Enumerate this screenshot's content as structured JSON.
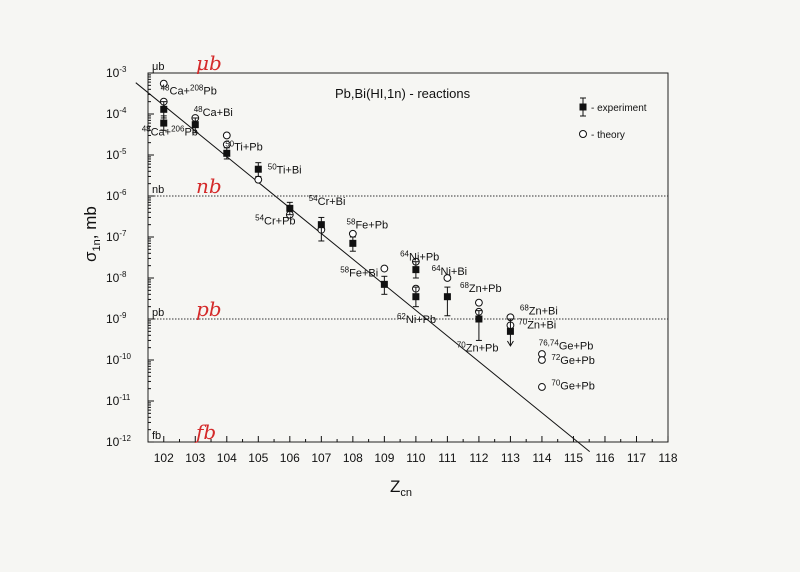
{
  "chart_data": {
    "type": "scatter",
    "title": "Pb,Bi(HI,1n) - reactions",
    "xlabel": "Z",
    "xlabel_sub": "cn",
    "ylabel": "σ",
    "ylabel_sub": "1n",
    "ylabel_unit": ", mb",
    "xlim": [
      101.5,
      118
    ],
    "ylog": true,
    "ylim": [
      1e-12,
      0.001
    ],
    "x_ticks": [
      102,
      103,
      104,
      105,
      106,
      107,
      108,
      109,
      110,
      111,
      112,
      113,
      114,
      115,
      116,
      117,
      118
    ],
    "y_ticks": [
      {
        "exp": -3,
        "label_base": "10",
        "label_exp": "-3"
      },
      {
        "exp": -4,
        "label_base": "10",
        "label_exp": "-4"
      },
      {
        "exp": -5,
        "label_base": "10",
        "label_exp": "-5"
      },
      {
        "exp": -6,
        "label_base": "10",
        "label_exp": "-6"
      },
      {
        "exp": -7,
        "label_base": "10",
        "label_exp": "-7"
      },
      {
        "exp": -8,
        "label_base": "10",
        "label_exp": "-8"
      },
      {
        "exp": -9,
        "label_base": "10",
        "label_exp": "-9"
      },
      {
        "exp": -10,
        "label_base": "10",
        "label_exp": "-10"
      },
      {
        "exp": -11,
        "label_base": "10",
        "label_exp": "-11"
      },
      {
        "exp": -12,
        "label_base": "10",
        "label_exp": "-12"
      }
    ],
    "unit_levels": [
      {
        "name": "μb",
        "exp": -3,
        "dashed": false,
        "handwritten": "μb"
      },
      {
        "name": "nb",
        "exp": -6,
        "dashed": true,
        "handwritten": "nb"
      },
      {
        "name": "pb",
        "exp": -9,
        "dashed": true,
        "handwritten": "pb"
      },
      {
        "name": "fb",
        "exp": -12,
        "dashed": false,
        "handwritten": "fb"
      }
    ],
    "legend": {
      "position": "top-right",
      "entries": [
        {
          "symbol": "filled-square-errorbar",
          "label": "- experiment"
        },
        {
          "symbol": "open-circle",
          "label": "- theory"
        }
      ]
    },
    "fit_line": {
      "x": [
        102,
        114.5
      ],
      "y": [
        0.00035,
        2e-12
      ]
    },
    "series": [
      {
        "name": "experiment",
        "points": [
          {
            "x": 102,
            "y": 0.00013,
            "lo": 8e-05,
            "hi": 0.0002
          },
          {
            "x": 102,
            "y": 6e-05,
            "lo": 4e-05,
            "hi": 9e-05
          },
          {
            "x": 103,
            "y": 5.5e-05,
            "lo": 3.5e-05,
            "hi": 8e-05
          },
          {
            "x": 104,
            "y": 1.1e-05,
            "lo": 8e-06,
            "hi": 1.5e-05
          },
          {
            "x": 105,
            "y": 4.5e-06,
            "lo": 3e-06,
            "hi": 6.5e-06
          },
          {
            "x": 106,
            "y": 5e-07,
            "lo": 3.5e-07,
            "hi": 7e-07
          },
          {
            "x": 107,
            "y": 2e-07,
            "lo": 8e-08,
            "hi": 3e-07
          },
          {
            "x": 108,
            "y": 7e-08,
            "lo": 4.5e-08,
            "hi": 1e-07
          },
          {
            "x": 109,
            "y": 7e-09,
            "lo": 4e-09,
            "hi": 1.1e-08
          },
          {
            "x": 110,
            "y": 1.6e-08,
            "lo": 1e-08,
            "hi": 2.5e-08
          },
          {
            "x": 110,
            "y": 3.5e-09,
            "lo": 2e-09,
            "hi": 6e-09
          },
          {
            "x": 111,
            "y": 3.5e-09,
            "lo": 1.2e-09,
            "hi": 6e-09
          },
          {
            "x": 112,
            "y": 1e-09,
            "lo": 3e-10,
            "hi": 1.6e-09
          },
          {
            "x": 113,
            "y": 5e-10,
            "lo": 2.2e-10,
            "hi": 1e-09,
            "arrow": true
          }
        ]
      },
      {
        "name": "theory",
        "points": [
          {
            "x": 102,
            "y": 0.00055
          },
          {
            "x": 102,
            "y": 0.0002
          },
          {
            "x": 103,
            "y": 8e-05
          },
          {
            "x": 104,
            "y": 3e-05
          },
          {
            "x": 104,
            "y": 1.8e-05
          },
          {
            "x": 105,
            "y": 2.5e-06
          },
          {
            "x": 106,
            "y": 3.5e-07
          },
          {
            "x": 107,
            "y": 1.5e-07
          },
          {
            "x": 108,
            "y": 1.2e-07
          },
          {
            "x": 109,
            "y": 1.7e-08
          },
          {
            "x": 110,
            "y": 2.5e-08
          },
          {
            "x": 110,
            "y": 5.5e-09
          },
          {
            "x": 111,
            "y": 1e-08
          },
          {
            "x": 112,
            "y": 2.5e-09
          },
          {
            "x": 112,
            "y": 1.5e-09
          },
          {
            "x": 113,
            "y": 1.1e-09
          },
          {
            "x": 113,
            "y": 7e-10
          },
          {
            "x": 114,
            "y": 1.4e-10
          },
          {
            "x": 114,
            "y": 1e-10
          },
          {
            "x": 114,
            "y": 2.2e-11
          }
        ]
      }
    ],
    "annotations": [
      {
        "sup": "48",
        "text": "Ca+",
        "sup2": "208",
        "text2": "Pb",
        "x": 101.9,
        "y": 0.0003
      },
      {
        "sup": "48",
        "text": "Ca+",
        "sup2": "206",
        "text2": "Pb",
        "x": 101.3,
        "y": 3e-05
      },
      {
        "sup": "48",
        "text": "Ca+Bi",
        "x": 102.95,
        "y": 9e-05
      },
      {
        "sup": "50",
        "text": "Ti+Pb",
        "x": 103.95,
        "y": 1.3e-05
      },
      {
        "sup": "50",
        "text": "Ti+Bi",
        "x": 105.3,
        "y": 3.5e-06
      },
      {
        "sup": "54",
        "text": "Cr+Pb",
        "x": 104.9,
        "y": 2e-07
      },
      {
        "sup": "54",
        "text": "Cr+Bi",
        "x": 106.6,
        "y": 6e-07
      },
      {
        "sup": "58",
        "text": "Fe+Pb",
        "x": 107.8,
        "y": 1.6e-07
      },
      {
        "sup": "58",
        "text": "Fe+Bi",
        "x": 107.6,
        "y": 1.1e-08
      },
      {
        "sup": "64",
        "text": "Ni+Pb",
        "x": 109.5,
        "y": 2.7e-08
      },
      {
        "sup": "64",
        "text": "Ni+Bi",
        "x": 110.5,
        "y": 1.2e-08
      },
      {
        "sup": "62",
        "text": "Ni+Pb",
        "x": 109.4,
        "y": 8e-10
      },
      {
        "sup": "68",
        "text": "Zn+Pb",
        "x": 111.4,
        "y": 4.5e-09
      },
      {
        "sup": "70",
        "text": "Zn+Pb",
        "x": 111.3,
        "y": 1.6e-10
      },
      {
        "sup": "68",
        "text": "Zn+Bi",
        "x": 113.3,
        "y": 1.3e-09
      },
      {
        "sup": "70",
        "text": "Zn+Bi",
        "x": 113.25,
        "y": 5.8e-10
      },
      {
        "sup": "76,74",
        "text": "Ge+Pb",
        "x": 113.9,
        "y": 1.8e-10
      },
      {
        "sup": "72",
        "text": "Ge+Pb",
        "x": 114.3,
        "y": 8e-11
      },
      {
        "sup": "70",
        "text": "Ge+Pb",
        "x": 114.3,
        "y": 1.9e-11
      }
    ]
  }
}
